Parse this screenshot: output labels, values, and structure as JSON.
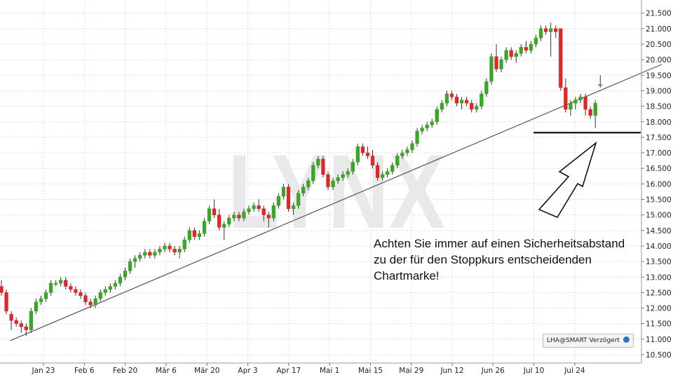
{
  "chart_data": {
    "type": "candlestick",
    "watermark": "LYNX",
    "ylim": [
      10.3,
      21.75
    ],
    "y_ticks": [
      "10.500",
      "11.000",
      "11.500",
      "12.000",
      "12.500",
      "13.000",
      "13.500",
      "14.000",
      "14.500",
      "15.000",
      "15.500",
      "16.000",
      "16.500",
      "17.000",
      "17.500",
      "18.000",
      "18.500",
      "19.000",
      "19.500",
      "20.000",
      "20.500",
      "21.000",
      "21.500"
    ],
    "x_labels": [
      "Jan 23",
      "Feb 6",
      "Feb 20",
      "Mär 6",
      "Mär 20",
      "Apr 3",
      "Apr 17",
      "Mai 1",
      "Mai 15",
      "Mai 29",
      "Jun 12",
      "Jun 26",
      "Jul 10",
      "Jul 24"
    ],
    "grid": true,
    "series": [
      {
        "ohlc": [
          [
            12.7,
            12.9,
            12.4,
            12.5
          ],
          [
            12.5,
            12.6,
            11.8,
            11.9
          ],
          [
            11.8,
            11.9,
            11.3,
            11.6
          ],
          [
            11.6,
            11.7,
            11.4,
            11.5
          ],
          [
            11.5,
            11.6,
            11.2,
            11.4
          ],
          [
            11.4,
            11.5,
            11.1,
            11.3
          ],
          [
            11.3,
            12.0,
            11.2,
            11.9
          ],
          [
            11.9,
            12.3,
            11.8,
            12.2
          ],
          [
            12.2,
            12.4,
            12.1,
            12.3
          ],
          [
            12.3,
            12.6,
            12.2,
            12.5
          ],
          [
            12.5,
            12.9,
            12.4,
            12.8
          ],
          [
            12.8,
            12.9,
            12.7,
            12.8
          ],
          [
            12.8,
            13.0,
            12.7,
            12.9
          ],
          [
            12.9,
            13.0,
            12.6,
            12.7
          ],
          [
            12.7,
            12.8,
            12.5,
            12.6
          ],
          [
            12.6,
            12.7,
            12.4,
            12.5
          ],
          [
            12.5,
            12.6,
            12.3,
            12.4
          ],
          [
            12.4,
            12.5,
            12.1,
            12.2
          ],
          [
            12.2,
            12.3,
            12.0,
            12.1
          ],
          [
            12.1,
            12.4,
            12.0,
            12.3
          ],
          [
            12.3,
            12.6,
            12.2,
            12.5
          ],
          [
            12.5,
            12.7,
            12.4,
            12.6
          ],
          [
            12.6,
            12.8,
            12.5,
            12.7
          ],
          [
            12.7,
            12.9,
            12.6,
            12.8
          ],
          [
            12.8,
            13.1,
            12.7,
            13.0
          ],
          [
            13.0,
            13.3,
            12.9,
            13.2
          ],
          [
            13.2,
            13.6,
            13.1,
            13.5
          ],
          [
            13.5,
            13.7,
            13.3,
            13.6
          ],
          [
            13.6,
            13.8,
            13.5,
            13.7
          ],
          [
            13.7,
            13.9,
            13.6,
            13.8
          ],
          [
            13.8,
            13.9,
            13.6,
            13.7
          ],
          [
            13.7,
            13.9,
            13.6,
            13.8
          ],
          [
            13.8,
            14.0,
            13.7,
            13.9
          ],
          [
            13.9,
            14.1,
            13.8,
            14.0
          ],
          [
            14.0,
            14.1,
            13.8,
            13.9
          ],
          [
            13.9,
            14.0,
            13.7,
            13.8
          ],
          [
            13.8,
            14.0,
            13.6,
            13.9
          ],
          [
            13.9,
            14.3,
            13.8,
            14.2
          ],
          [
            14.2,
            14.6,
            14.1,
            14.5
          ],
          [
            14.5,
            14.6,
            14.2,
            14.3
          ],
          [
            14.3,
            14.5,
            14.2,
            14.4
          ],
          [
            14.4,
            14.9,
            14.3,
            14.8
          ],
          [
            14.8,
            15.3,
            14.7,
            15.2
          ],
          [
            15.2,
            15.5,
            14.9,
            15.0
          ],
          [
            15.0,
            15.2,
            14.5,
            14.6
          ],
          [
            14.6,
            14.8,
            14.2,
            14.7
          ],
          [
            14.7,
            15.0,
            14.6,
            14.9
          ],
          [
            14.9,
            15.1,
            14.8,
            15.0
          ],
          [
            15.0,
            15.1,
            14.8,
            14.9
          ],
          [
            14.9,
            15.2,
            14.8,
            15.1
          ],
          [
            15.1,
            15.3,
            15.0,
            15.2
          ],
          [
            15.2,
            15.4,
            15.1,
            15.3
          ],
          [
            15.3,
            15.5,
            15.1,
            15.2
          ],
          [
            15.2,
            15.3,
            14.8,
            15.0
          ],
          [
            15.0,
            15.1,
            14.6,
            14.9
          ],
          [
            14.9,
            15.4,
            14.8,
            15.3
          ],
          [
            15.3,
            15.7,
            15.2,
            15.6
          ],
          [
            15.6,
            16.0,
            15.5,
            15.9
          ],
          [
            15.9,
            16.0,
            15.1,
            15.2
          ],
          [
            15.2,
            15.4,
            15.0,
            15.3
          ],
          [
            15.3,
            15.8,
            15.2,
            15.7
          ],
          [
            15.7,
            16.0,
            15.6,
            15.9
          ],
          [
            15.9,
            16.2,
            15.8,
            16.1
          ],
          [
            16.1,
            16.7,
            16.0,
            16.6
          ],
          [
            16.6,
            16.9,
            16.5,
            16.8
          ],
          [
            16.8,
            16.9,
            16.2,
            16.3
          ],
          [
            16.3,
            16.4,
            15.8,
            15.9
          ],
          [
            15.9,
            16.2,
            15.8,
            16.1
          ],
          [
            16.1,
            16.3,
            16.0,
            16.2
          ],
          [
            16.2,
            16.4,
            16.1,
            16.3
          ],
          [
            16.3,
            16.5,
            16.2,
            16.4
          ],
          [
            16.4,
            16.8,
            16.3,
            16.7
          ],
          [
            16.7,
            17.3,
            16.6,
            17.2
          ],
          [
            17.2,
            17.3,
            16.9,
            17.0
          ],
          [
            17.0,
            17.2,
            16.8,
            16.9
          ],
          [
            16.9,
            17.1,
            16.5,
            16.6
          ],
          [
            16.6,
            16.7,
            16.1,
            16.2
          ],
          [
            16.2,
            16.4,
            16.1,
            16.3
          ],
          [
            16.3,
            16.5,
            16.2,
            16.4
          ],
          [
            16.4,
            16.7,
            16.3,
            16.6
          ],
          [
            16.6,
            17.0,
            16.5,
            16.9
          ],
          [
            16.9,
            17.1,
            16.8,
            17.0
          ],
          [
            17.0,
            17.2,
            16.9,
            17.1
          ],
          [
            17.1,
            17.4,
            17.0,
            17.3
          ],
          [
            17.3,
            17.8,
            17.2,
            17.7
          ],
          [
            17.7,
            17.9,
            17.6,
            17.8
          ],
          [
            17.8,
            18.0,
            17.7,
            17.9
          ],
          [
            17.9,
            18.1,
            17.8,
            18.0
          ],
          [
            18.0,
            18.5,
            17.9,
            18.4
          ],
          [
            18.4,
            18.7,
            18.3,
            18.6
          ],
          [
            18.6,
            19.0,
            18.5,
            18.9
          ],
          [
            18.9,
            19.0,
            18.7,
            18.8
          ],
          [
            18.8,
            18.9,
            18.5,
            18.6
          ],
          [
            18.6,
            18.8,
            18.4,
            18.7
          ],
          [
            18.7,
            18.8,
            18.5,
            18.6
          ],
          [
            18.6,
            18.7,
            18.3,
            18.4
          ],
          [
            18.4,
            18.6,
            18.3,
            18.5
          ],
          [
            18.5,
            19.0,
            18.4,
            18.9
          ],
          [
            18.9,
            19.4,
            18.8,
            19.3
          ],
          [
            19.3,
            20.2,
            19.2,
            20.1
          ],
          [
            20.1,
            20.5,
            19.6,
            19.7
          ],
          [
            19.7,
            20.1,
            19.6,
            20.0
          ],
          [
            20.0,
            20.4,
            19.9,
            20.3
          ],
          [
            20.3,
            20.4,
            20.0,
            20.1
          ],
          [
            20.1,
            20.3,
            19.9,
            20.2
          ],
          [
            20.2,
            20.5,
            20.1,
            20.4
          ],
          [
            20.4,
            20.6,
            20.2,
            20.3
          ],
          [
            20.3,
            20.6,
            20.2,
            20.5
          ],
          [
            20.5,
            20.8,
            20.4,
            20.7
          ],
          [
            20.7,
            21.1,
            20.6,
            21.0
          ],
          [
            21.0,
            21.1,
            20.8,
            20.9
          ],
          [
            20.9,
            21.2,
            20.1,
            21.0
          ],
          [
            21.0,
            21.1,
            20.7,
            20.9
          ],
          [
            21.0,
            21.0,
            19.0,
            19.1
          ],
          [
            19.1,
            19.4,
            18.3,
            18.4
          ],
          [
            18.4,
            18.7,
            18.2,
            18.6
          ],
          [
            18.6,
            18.8,
            18.4,
            18.7
          ],
          [
            18.7,
            18.9,
            18.6,
            18.8
          ],
          [
            18.8,
            18.9,
            18.2,
            18.4
          ],
          [
            18.4,
            18.5,
            18.1,
            18.2
          ],
          [
            18.2,
            18.7,
            17.8,
            18.6
          ],
          [
            19.2,
            19.5,
            19.1,
            19.2
          ]
        ]
      }
    ],
    "trendline": {
      "from": [
        "Jan 23",
        11.0
      ],
      "to": [
        "Jul 24",
        19.6
      ]
    },
    "support_level": 17.65,
    "annotation": [
      "Achten Sie immer auf einen Sicherheitsabstand",
      "zu der für den Stoppkurs entscheidenden",
      "Chartmarke!"
    ],
    "badge": "LHA@SMART Verzögert",
    "colors": {
      "up": "#3aa626",
      "down": "#e0262b",
      "grid": "#dcdcdc",
      "watermark": "#e9e9e9",
      "line": "#555555"
    }
  }
}
